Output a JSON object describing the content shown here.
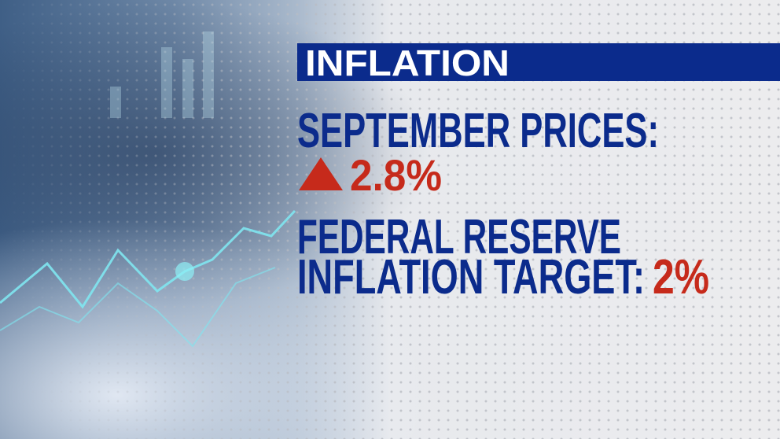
{
  "header": {
    "title": "INFLATION"
  },
  "items": [
    {
      "label": "SEPTEMBER PRICES:",
      "value": "2.8%"
    },
    {
      "label_line1": "FEDERAL RESERVE",
      "label_line2": "INFLATION TARGET:",
      "value": "2%"
    }
  ]
}
